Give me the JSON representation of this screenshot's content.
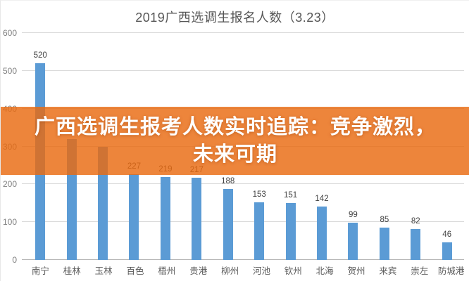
{
  "title": "2019广西选调生报名人数（3.23）",
  "banner": {
    "line1": "广西选调生报考人数实时追踪：竞争激烈，",
    "line2": "未来可期",
    "bg_color": "#ED8733",
    "text_color": "#FFFFFF"
  },
  "chart_data": {
    "type": "bar",
    "title": "2019广西选调生报名人数（3.23）",
    "categories": [
      "南宁",
      "桂林",
      "玉林",
      "百色",
      "梧州",
      "贵港",
      "柳州",
      "河池",
      "钦州",
      "北海",
      "贺州",
      "来宾",
      "崇左",
      "防城港"
    ],
    "values": [
      520,
      320,
      300,
      227,
      219,
      217,
      188,
      153,
      151,
      142,
      99,
      85,
      82,
      46
    ],
    "visible_value_labels": [
      "520",
      "",
      "",
      "227",
      "219",
      "217",
      "188",
      "153",
      "151",
      "142",
      "99",
      "85",
      "82",
      "46"
    ],
    "xlabel": "",
    "ylabel": "",
    "ylim": [
      0,
      600
    ],
    "yticks": [
      0,
      100,
      200,
      300,
      400,
      500,
      600
    ],
    "grid": "horizontal",
    "legend": "none",
    "bar_color": "#5B9BD5",
    "gridline_color": "#D9D9D9",
    "axis_line_color": "#B7B7B7",
    "label_color": "#3F3F3F"
  }
}
